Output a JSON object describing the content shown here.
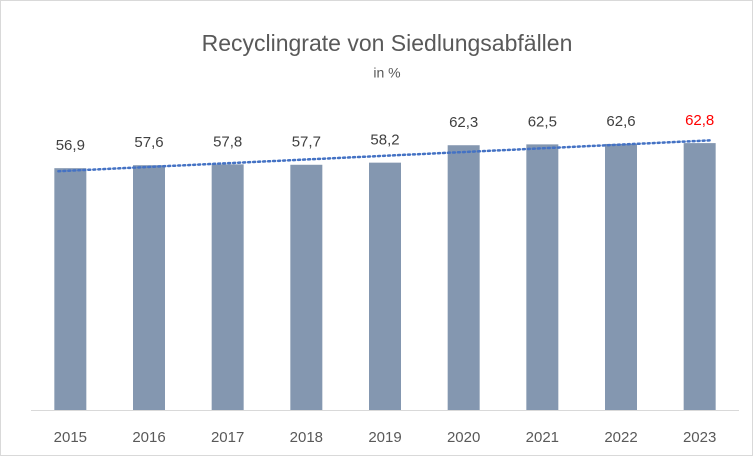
{
  "chart_data": {
    "type": "bar",
    "title": "Recyclingrate von Siedlungsabfällen",
    "subtitle": "in %",
    "categories": [
      "2015",
      "2016",
      "2017",
      "2018",
      "2019",
      "2020",
      "2021",
      "2022",
      "2023"
    ],
    "values": [
      56.9,
      57.6,
      57.8,
      57.7,
      58.2,
      62.3,
      62.5,
      62.6,
      62.8
    ],
    "value_labels": [
      "56,9",
      "57,6",
      "57,8",
      "57,7",
      "58,2",
      "62,3",
      "62,5",
      "62,6",
      "62,8"
    ],
    "value_label_colors": [
      "#404040",
      "#404040",
      "#404040",
      "#404040",
      "#404040",
      "#404040",
      "#404040",
      "#404040",
      "#ff0000"
    ],
    "color": "#8497b0",
    "trendline": true,
    "trendline_color": "#4472c4",
    "ylim": [
      0,
      70
    ],
    "grid": false
  }
}
